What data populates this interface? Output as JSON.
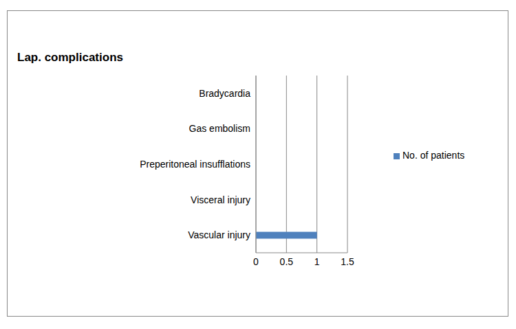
{
  "chart_data": {
    "type": "bar",
    "title": "Lap. complications",
    "orientation": "horizontal",
    "categories": [
      "Vascular injury",
      "Visceral  injury",
      "Preperitoneal insufflations",
      "Gas embolism",
      "Bradycardia"
    ],
    "series": [
      {
        "name": "No. of patients",
        "color": "#4f81bd",
        "values": [
          1,
          0,
          0,
          0,
          0
        ]
      }
    ],
    "xlim": [
      0,
      1.5
    ],
    "xticks": [
      0,
      0.5,
      1,
      1.5
    ],
    "grid": true,
    "legend": "right"
  }
}
